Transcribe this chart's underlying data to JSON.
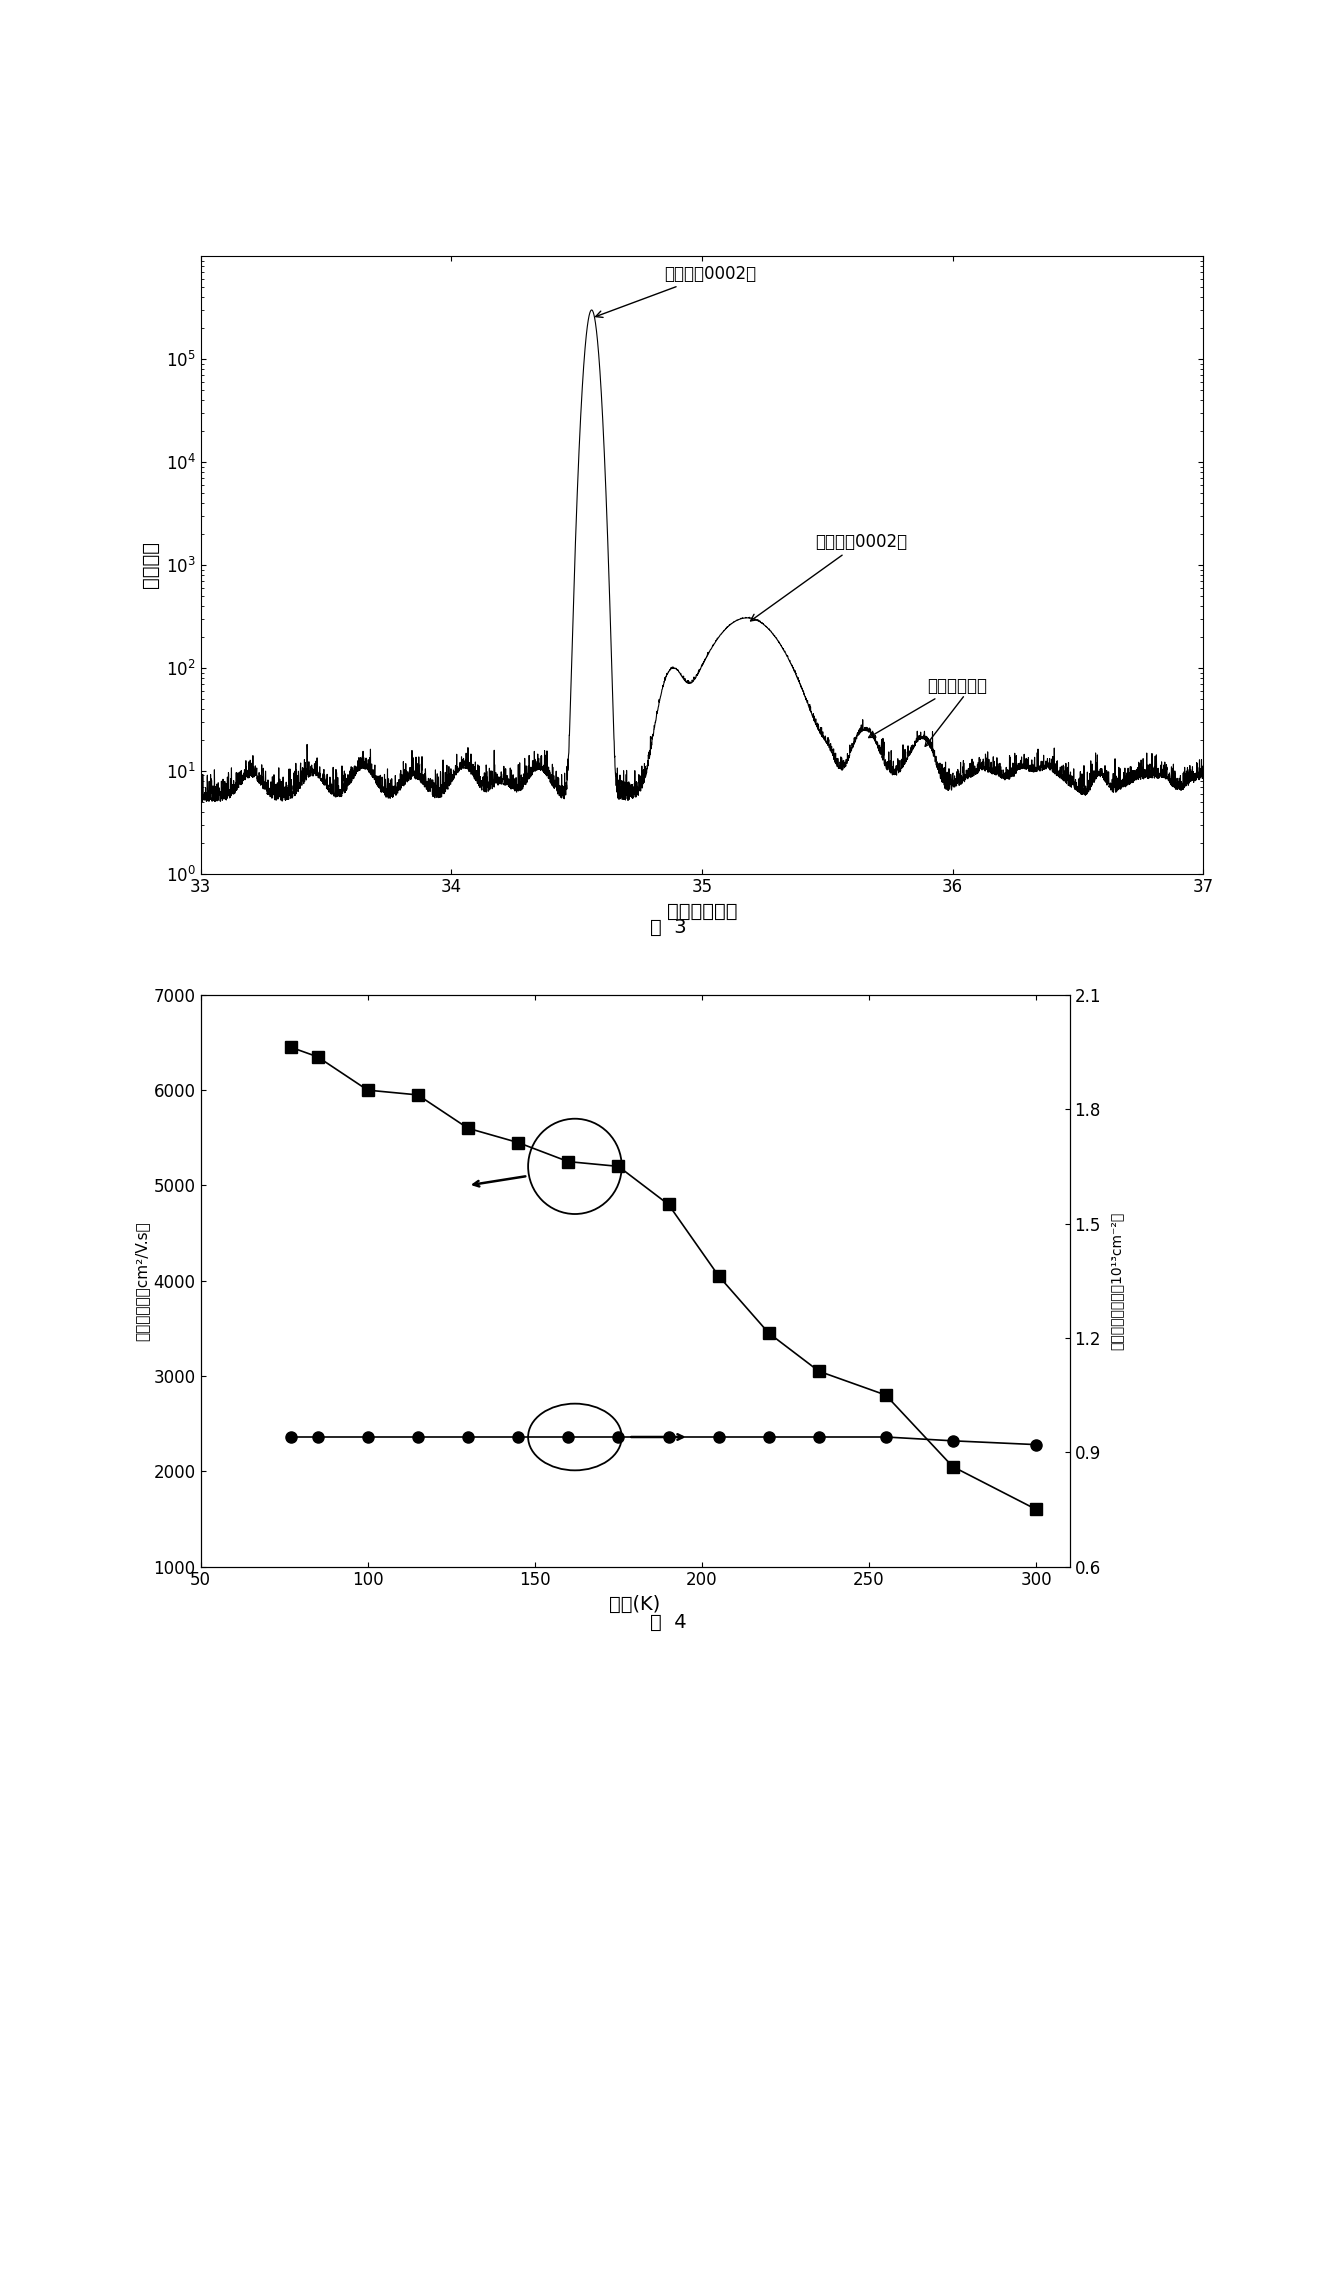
{
  "fig3": {
    "xlabel": "衍射角（度）",
    "ylabel": "衍射强度",
    "xlim": [
      33,
      37
    ],
    "ylim": [
      1,
      1000000
    ],
    "gan_label": "氯化锂（0002）",
    "algan_label": "铝锂氮（0002）",
    "fringes_label": "厅度干涉条纹",
    "caption": "图  3",
    "xticks": [
      33,
      34,
      35,
      36,
      37
    ],
    "yticks": [
      1,
      10,
      100,
      1000,
      10000,
      100000
    ]
  },
  "fig4": {
    "xlabel": "温度(K)",
    "ylabel_left": "电子迁移率（cm²/V.s）",
    "ylabel_right": "二维电子气浓度（10¹³cm⁻²）",
    "xlim": [
      50,
      310
    ],
    "ylim_left": [
      1000,
      7000
    ],
    "ylim_right": [
      0.6,
      2.1
    ],
    "xticks": [
      50,
      100,
      150,
      200,
      250,
      300
    ],
    "yticks_left": [
      1000,
      2000,
      3000,
      4000,
      5000,
      6000,
      7000
    ],
    "yticks_right": [
      0.6,
      0.9,
      1.2,
      1.5,
      1.8,
      2.1
    ],
    "mobility_x": [
      77,
      85,
      100,
      115,
      130,
      145,
      160,
      175,
      190,
      205,
      220,
      235,
      255,
      275,
      300
    ],
    "mobility_y": [
      6450,
      6350,
      6000,
      5950,
      5600,
      5450,
      5250,
      5200,
      4800,
      4050,
      3450,
      3050,
      2800,
      2050,
      1600
    ],
    "density_x": [
      77,
      85,
      100,
      115,
      130,
      145,
      160,
      175,
      190,
      205,
      220,
      235,
      255,
      275,
      300
    ],
    "density_y": [
      0.94,
      0.94,
      0.94,
      0.94,
      0.94,
      0.94,
      0.94,
      0.94,
      0.94,
      0.94,
      0.94,
      0.94,
      0.94,
      0.93,
      0.92
    ],
    "caption": "图  4"
  }
}
